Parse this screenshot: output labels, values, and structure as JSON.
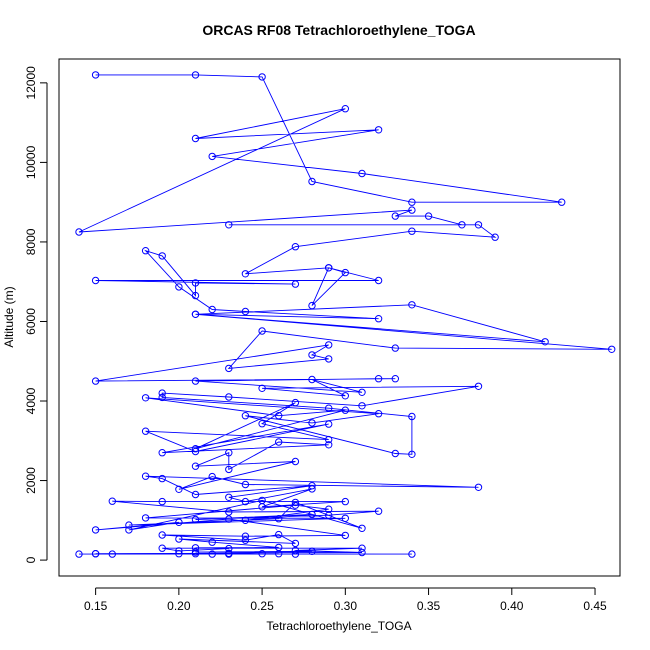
{
  "chart_data": {
    "type": "line",
    "title": "ORCAS RF08 Tetrachloroethylene_TOGA",
    "xlabel": "Tetrachloroethylene_TOGA",
    "ylabel": "Altitude (m)",
    "xlim": [
      0.128,
      0.465
    ],
    "ylim": [
      -400,
      12600
    ],
    "xticks": [
      0.15,
      0.2,
      0.25,
      0.3,
      0.35,
      0.4,
      0.45
    ],
    "xtick_labels": [
      "0.15",
      "0.20",
      "0.25",
      "0.30",
      "0.35",
      "0.40",
      "0.45"
    ],
    "yticks": [
      0,
      2000,
      4000,
      6000,
      8000,
      10000,
      12000
    ],
    "ytick_labels": [
      "0",
      "2000",
      "4000",
      "6000",
      "8000",
      "10000",
      "12000"
    ],
    "markers": "open-circle",
    "grid": false,
    "legend": "none",
    "series_color": "#0000ff",
    "series": [
      {
        "points": [
          [
            0.15,
            12200
          ],
          [
            0.21,
            12200
          ],
          [
            0.25,
            12150
          ],
          [
            0.28,
            9520
          ],
          [
            0.34,
            9000
          ],
          [
            0.43,
            9000
          ],
          [
            0.31,
            9720
          ],
          [
            0.22,
            10150
          ],
          [
            0.32,
            10820
          ],
          [
            0.21,
            10600
          ],
          [
            0.3,
            11350
          ],
          [
            0.14,
            8250
          ],
          [
            0.34,
            8800
          ],
          [
            0.33,
            8650
          ],
          [
            0.35,
            8650
          ],
          [
            0.37,
            8430
          ],
          [
            0.23,
            8430
          ],
          [
            0.38,
            8430
          ],
          [
            0.39,
            8120
          ],
          [
            0.34,
            8270
          ],
          [
            0.27,
            7880
          ],
          [
            0.24,
            7200
          ],
          [
            0.29,
            7350
          ],
          [
            0.3,
            7230
          ],
          [
            0.28,
            6400
          ],
          [
            0.29,
            7350
          ],
          [
            0.32,
            7030
          ],
          [
            0.15,
            7030
          ],
          [
            0.27,
            6940
          ],
          [
            0.21,
            6970
          ],
          [
            0.21,
            6650
          ],
          [
            0.19,
            7650
          ],
          [
            0.18,
            7780
          ],
          [
            0.2,
            6870
          ],
          [
            0.22,
            6300
          ],
          [
            0.24,
            6250
          ],
          [
            0.32,
            6070
          ],
          [
            0.21,
            6180
          ],
          [
            0.34,
            6420
          ],
          [
            0.42,
            5490
          ],
          [
            0.21,
            6180
          ],
          [
            0.46,
            5300
          ],
          [
            0.33,
            5330
          ],
          [
            0.25,
            5760
          ],
          [
            0.23,
            4820
          ],
          [
            0.29,
            5060
          ],
          [
            0.28,
            5160
          ],
          [
            0.29,
            5410
          ],
          [
            0.15,
            4500
          ],
          [
            0.33,
            4560
          ],
          [
            0.32,
            4560
          ],
          [
            0.21,
            4500
          ],
          [
            0.31,
            4220
          ],
          [
            0.28,
            4540
          ],
          [
            0.3,
            4130
          ],
          [
            0.25,
            4320
          ],
          [
            0.38,
            4370
          ],
          [
            0.31,
            3880
          ],
          [
            0.23,
            4100
          ],
          [
            0.19,
            4200
          ],
          [
            0.19,
            4090
          ],
          [
            0.29,
            3820
          ],
          [
            0.34,
            3610
          ],
          [
            0.34,
            2660
          ],
          [
            0.33,
            2680
          ],
          [
            0.24,
            3630
          ],
          [
            0.28,
            3450
          ],
          [
            0.32,
            3680
          ],
          [
            0.18,
            4080
          ],
          [
            0.26,
            3630
          ],
          [
            0.3,
            3770
          ],
          [
            0.21,
            2800
          ],
          [
            0.27,
            3960
          ],
          [
            0.25,
            3430
          ],
          [
            0.29,
            3030
          ],
          [
            0.18,
            3240
          ],
          [
            0.21,
            2730
          ],
          [
            0.29,
            3420
          ],
          [
            0.19,
            2700
          ],
          [
            0.29,
            2900
          ],
          [
            0.26,
            2970
          ],
          [
            0.23,
            2280
          ],
          [
            0.23,
            2700
          ],
          [
            0.21,
            2360
          ],
          [
            0.27,
            2480
          ],
          [
            0.2,
            1780
          ],
          [
            0.22,
            2100
          ],
          [
            0.24,
            1900
          ],
          [
            0.38,
            1830
          ],
          [
            0.18,
            2110
          ],
          [
            0.19,
            2050
          ],
          [
            0.21,
            1650
          ],
          [
            0.28,
            1870
          ],
          [
            0.23,
            1580
          ],
          [
            0.24,
            1470
          ],
          [
            0.28,
            1790
          ],
          [
            0.25,
            1340
          ],
          [
            0.3,
            1470
          ],
          [
            0.19,
            1470
          ],
          [
            0.16,
            1480
          ],
          [
            0.23,
            1210
          ],
          [
            0.32,
            1230
          ],
          [
            0.29,
            1130
          ],
          [
            0.21,
            1020
          ],
          [
            0.28,
            1150
          ],
          [
            0.24,
            1000
          ],
          [
            0.29,
            1280
          ],
          [
            0.27,
            1380
          ],
          [
            0.18,
            1060
          ],
          [
            0.3,
            1050
          ],
          [
            0.17,
            880
          ],
          [
            0.26,
            1040
          ],
          [
            0.27,
            1450
          ],
          [
            0.31,
            800
          ],
          [
            0.25,
            1500
          ],
          [
            0.17,
            760
          ],
          [
            0.2,
            950
          ],
          [
            0.15,
            760
          ],
          [
            0.23,
            1030
          ],
          [
            0.3,
            620
          ],
          [
            0.24,
            600
          ],
          [
            0.19,
            630
          ],
          [
            0.24,
            500
          ],
          [
            0.26,
            640
          ],
          [
            0.27,
            420
          ],
          [
            0.2,
            530
          ],
          [
            0.22,
            450
          ],
          [
            0.26,
            320
          ],
          [
            0.21,
            310
          ],
          [
            0.23,
            290
          ],
          [
            0.2,
            230
          ],
          [
            0.19,
            300
          ],
          [
            0.31,
            300
          ],
          [
            0.27,
            240
          ],
          [
            0.31,
            190
          ],
          [
            0.21,
            200
          ],
          [
            0.28,
            220
          ],
          [
            0.23,
            170
          ],
          [
            0.15,
            160
          ],
          [
            0.27,
            150
          ],
          [
            0.2,
            160
          ],
          [
            0.34,
            150
          ],
          [
            0.16,
            150
          ],
          [
            0.14,
            150
          ],
          [
            0.25,
            160
          ],
          [
            0.22,
            150
          ],
          [
            0.21,
            160
          ],
          [
            0.23,
            150
          ],
          [
            0.26,
            160
          ],
          [
            0.15,
            160
          ]
        ]
      }
    ]
  }
}
